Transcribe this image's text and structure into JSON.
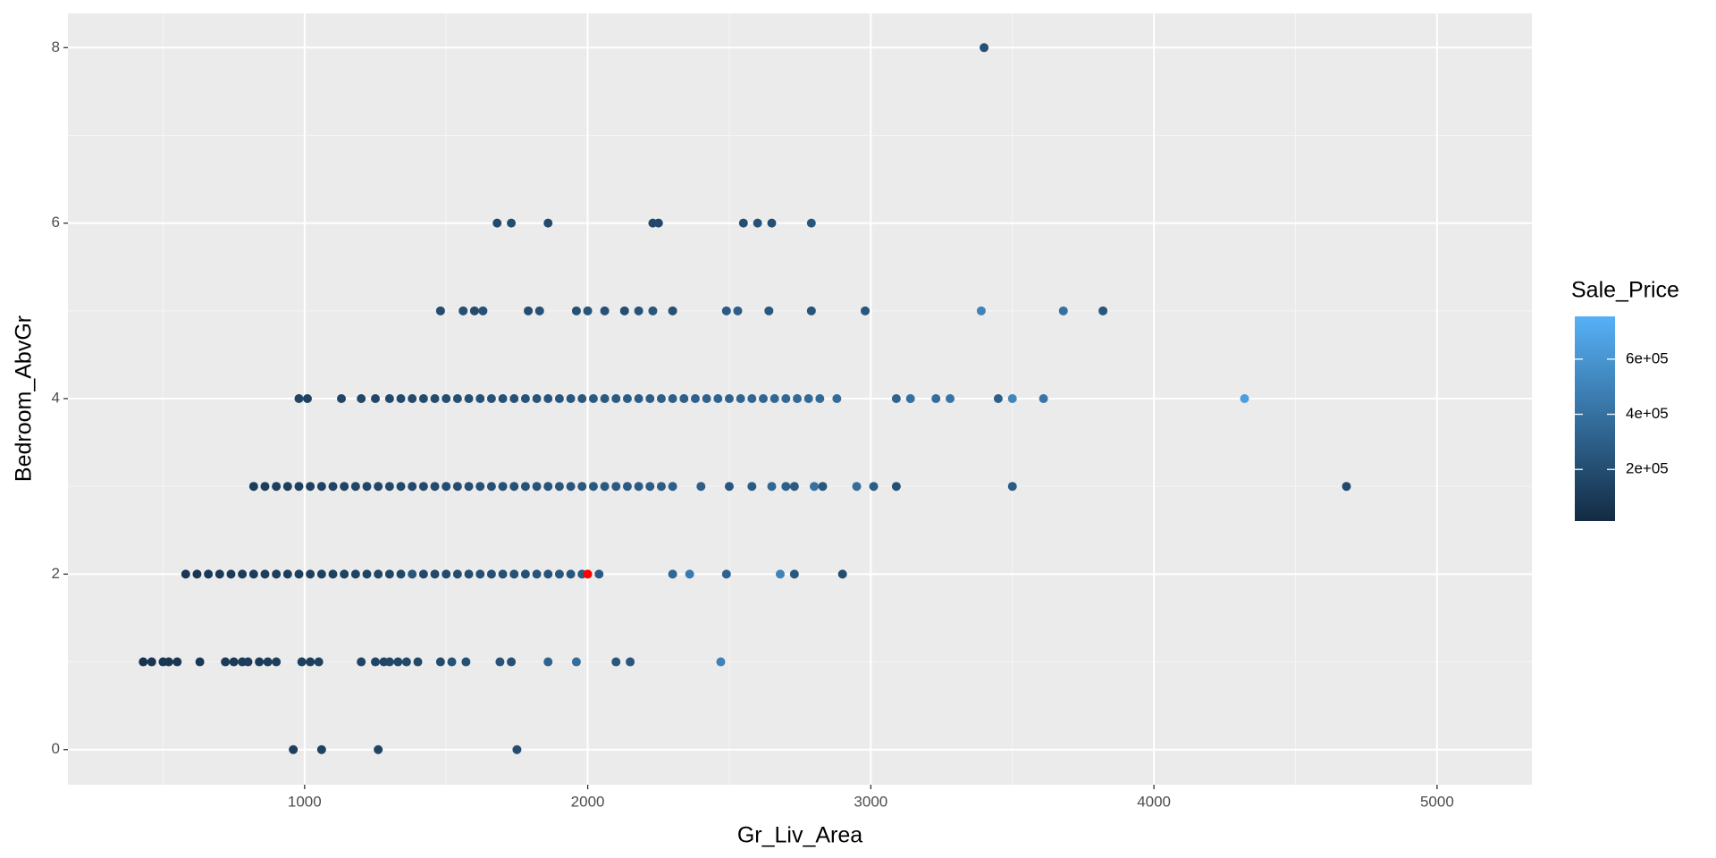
{
  "chart_data": {
    "type": "scatter",
    "x_label": "Gr_Liv_Area",
    "y_label": "Bedroom_AbvGr",
    "xlim": [
      164,
      5335
    ],
    "ylim": [
      -0.4,
      8.39
    ],
    "xticks": [
      1000,
      2000,
      3000,
      4000,
      5000
    ],
    "xminor": [
      500,
      1500,
      2500,
      3500,
      4500
    ],
    "yticks": [
      0,
      2,
      4,
      6,
      8
    ],
    "yminor": [
      1,
      3,
      5,
      7
    ],
    "grid": true,
    "colorbar": {
      "title": "Sale_Price",
      "lim": [
        12789,
        755000
      ],
      "low": "#132b43",
      "high": "#56b1f7",
      "ticks": [
        {
          "value": 200000,
          "label": "2e+05"
        },
        {
          "value": 400000,
          "label": "4e+05"
        },
        {
          "value": 600000,
          "label": "6e+05"
        }
      ]
    },
    "highlight": {
      "x": 2000,
      "y": 2,
      "color": "#ff0000"
    },
    "points": [
      {
        "x": 960,
        "y": 0,
        "p": 120000
      },
      {
        "x": 1060,
        "y": 0,
        "p": 140000
      },
      {
        "x": 1260,
        "y": 0,
        "p": 150000
      },
      {
        "x": 1750,
        "y": 0,
        "p": 200000
      },
      {
        "x": 430,
        "y": 1,
        "p": 60000
      },
      {
        "x": 460,
        "y": 1,
        "p": 70000
      },
      {
        "x": 500,
        "y": 1,
        "p": 75000
      },
      {
        "x": 520,
        "y": 1,
        "p": 80000
      },
      {
        "x": 550,
        "y": 1,
        "p": 85000
      },
      {
        "x": 630,
        "y": 1,
        "p": 90000
      },
      {
        "x": 720,
        "y": 1,
        "p": 100000
      },
      {
        "x": 750,
        "y": 1,
        "p": 95000
      },
      {
        "x": 780,
        "y": 1,
        "p": 105000
      },
      {
        "x": 800,
        "y": 1,
        "p": 110000
      },
      {
        "x": 840,
        "y": 1,
        "p": 100000
      },
      {
        "x": 870,
        "y": 1,
        "p": 115000
      },
      {
        "x": 900,
        "y": 1,
        "p": 120000
      },
      {
        "x": 990,
        "y": 1,
        "p": 130000
      },
      {
        "x": 1020,
        "y": 1,
        "p": 125000
      },
      {
        "x": 1050,
        "y": 1,
        "p": 140000
      },
      {
        "x": 1200,
        "y": 1,
        "p": 150000
      },
      {
        "x": 1250,
        "y": 1,
        "p": 160000
      },
      {
        "x": 1280,
        "y": 1,
        "p": 155000
      },
      {
        "x": 1300,
        "y": 1,
        "p": 170000
      },
      {
        "x": 1330,
        "y": 1,
        "p": 165000
      },
      {
        "x": 1360,
        "y": 1,
        "p": 180000
      },
      {
        "x": 1400,
        "y": 1,
        "p": 175000
      },
      {
        "x": 1480,
        "y": 1,
        "p": 190000
      },
      {
        "x": 1520,
        "y": 1,
        "p": 230000
      },
      {
        "x": 1570,
        "y": 1,
        "p": 210000
      },
      {
        "x": 1690,
        "y": 1,
        "p": 240000
      },
      {
        "x": 1730,
        "y": 1,
        "p": 220000
      },
      {
        "x": 1860,
        "y": 1,
        "p": 330000
      },
      {
        "x": 1960,
        "y": 1,
        "p": 380000
      },
      {
        "x": 2100,
        "y": 1,
        "p": 260000
      },
      {
        "x": 2150,
        "y": 1,
        "p": 250000
      },
      {
        "x": 2470,
        "y": 1,
        "p": 500000
      },
      {
        "x": 580,
        "y": 2,
        "p": 85000
      },
      {
        "x": 620,
        "y": 2,
        "p": 80000
      },
      {
        "x": 660,
        "y": 2,
        "p": 90000
      },
      {
        "x": 700,
        "y": 2,
        "p": 95000
      },
      {
        "x": 740,
        "y": 2,
        "p": 100000
      },
      {
        "x": 780,
        "y": 2,
        "p": 105000
      },
      {
        "x": 820,
        "y": 2,
        "p": 110000
      },
      {
        "x": 860,
        "y": 2,
        "p": 115000
      },
      {
        "x": 900,
        "y": 2,
        "p": 120000
      },
      {
        "x": 940,
        "y": 2,
        "p": 118000
      },
      {
        "x": 980,
        "y": 2,
        "p": 125000
      },
      {
        "x": 1020,
        "y": 2,
        "p": 130000
      },
      {
        "x": 1060,
        "y": 2,
        "p": 135000
      },
      {
        "x": 1100,
        "y": 2,
        "p": 140000
      },
      {
        "x": 1140,
        "y": 2,
        "p": 138000
      },
      {
        "x": 1180,
        "y": 2,
        "p": 145000
      },
      {
        "x": 1220,
        "y": 2,
        "p": 150000
      },
      {
        "x": 1260,
        "y": 2,
        "p": 155000
      },
      {
        "x": 1300,
        "y": 2,
        "p": 160000
      },
      {
        "x": 1340,
        "y": 2,
        "p": 170000
      },
      {
        "x": 1380,
        "y": 2,
        "p": 250000
      },
      {
        "x": 1420,
        "y": 2,
        "p": 180000
      },
      {
        "x": 1460,
        "y": 2,
        "p": 175000
      },
      {
        "x": 1500,
        "y": 2,
        "p": 190000
      },
      {
        "x": 1540,
        "y": 2,
        "p": 200000
      },
      {
        "x": 1580,
        "y": 2,
        "p": 195000
      },
      {
        "x": 1620,
        "y": 2,
        "p": 210000
      },
      {
        "x": 1660,
        "y": 2,
        "p": 205000
      },
      {
        "x": 1700,
        "y": 2,
        "p": 220000
      },
      {
        "x": 1740,
        "y": 2,
        "p": 230000
      },
      {
        "x": 1780,
        "y": 2,
        "p": 215000
      },
      {
        "x": 1820,
        "y": 2,
        "p": 240000
      },
      {
        "x": 1860,
        "y": 2,
        "p": 235000
      },
      {
        "x": 1900,
        "y": 2,
        "p": 260000
      },
      {
        "x": 1940,
        "y": 2,
        "p": 250000
      },
      {
        "x": 1980,
        "y": 2,
        "p": 270000
      },
      {
        "x": 2040,
        "y": 2,
        "p": 280000
      },
      {
        "x": 2300,
        "y": 2,
        "p": 350000
      },
      {
        "x": 2360,
        "y": 2,
        "p": 450000
      },
      {
        "x": 2490,
        "y": 2,
        "p": 320000
      },
      {
        "x": 2680,
        "y": 2,
        "p": 500000
      },
      {
        "x": 2730,
        "y": 2,
        "p": 260000
      },
      {
        "x": 2900,
        "y": 2,
        "p": 200000
      },
      {
        "x": 820,
        "y": 3,
        "p": 110000
      },
      {
        "x": 860,
        "y": 3,
        "p": 115000
      },
      {
        "x": 900,
        "y": 3,
        "p": 120000
      },
      {
        "x": 940,
        "y": 3,
        "p": 125000
      },
      {
        "x": 980,
        "y": 3,
        "p": 130000
      },
      {
        "x": 1020,
        "y": 3,
        "p": 135000
      },
      {
        "x": 1060,
        "y": 3,
        "p": 140000
      },
      {
        "x": 1100,
        "y": 3,
        "p": 145000
      },
      {
        "x": 1140,
        "y": 3,
        "p": 150000
      },
      {
        "x": 1180,
        "y": 3,
        "p": 155000
      },
      {
        "x": 1220,
        "y": 3,
        "p": 160000
      },
      {
        "x": 1260,
        "y": 3,
        "p": 165000
      },
      {
        "x": 1300,
        "y": 3,
        "p": 170000
      },
      {
        "x": 1340,
        "y": 3,
        "p": 175000
      },
      {
        "x": 1380,
        "y": 3,
        "p": 180000
      },
      {
        "x": 1420,
        "y": 3,
        "p": 185000
      },
      {
        "x": 1460,
        "y": 3,
        "p": 190000
      },
      {
        "x": 1500,
        "y": 3,
        "p": 195000
      },
      {
        "x": 1540,
        "y": 3,
        "p": 200000
      },
      {
        "x": 1580,
        "y": 3,
        "p": 205000
      },
      {
        "x": 1620,
        "y": 3,
        "p": 210000
      },
      {
        "x": 1660,
        "y": 3,
        "p": 215000
      },
      {
        "x": 1700,
        "y": 3,
        "p": 220000
      },
      {
        "x": 1740,
        "y": 3,
        "p": 225000
      },
      {
        "x": 1780,
        "y": 3,
        "p": 230000
      },
      {
        "x": 1820,
        "y": 3,
        "p": 235000
      },
      {
        "x": 1860,
        "y": 3,
        "p": 240000
      },
      {
        "x": 1900,
        "y": 3,
        "p": 245000
      },
      {
        "x": 1940,
        "y": 3,
        "p": 250000
      },
      {
        "x": 1980,
        "y": 3,
        "p": 255000
      },
      {
        "x": 2020,
        "y": 3,
        "p": 260000
      },
      {
        "x": 2060,
        "y": 3,
        "p": 265000
      },
      {
        "x": 2100,
        "y": 3,
        "p": 270000
      },
      {
        "x": 2140,
        "y": 3,
        "p": 275000
      },
      {
        "x": 2180,
        "y": 3,
        "p": 280000
      },
      {
        "x": 2220,
        "y": 3,
        "p": 285000
      },
      {
        "x": 2260,
        "y": 3,
        "p": 290000
      },
      {
        "x": 2300,
        "y": 3,
        "p": 300000
      },
      {
        "x": 2400,
        "y": 3,
        "p": 300000
      },
      {
        "x": 2500,
        "y": 3,
        "p": 250000
      },
      {
        "x": 2580,
        "y": 3,
        "p": 280000
      },
      {
        "x": 2650,
        "y": 3,
        "p": 350000
      },
      {
        "x": 2700,
        "y": 3,
        "p": 300000
      },
      {
        "x": 2730,
        "y": 3,
        "p": 270000
      },
      {
        "x": 2800,
        "y": 3,
        "p": 400000
      },
      {
        "x": 2830,
        "y": 3,
        "p": 250000
      },
      {
        "x": 2950,
        "y": 3,
        "p": 380000
      },
      {
        "x": 3010,
        "y": 3,
        "p": 290000
      },
      {
        "x": 3090,
        "y": 3,
        "p": 210000
      },
      {
        "x": 3500,
        "y": 3,
        "p": 280000
      },
      {
        "x": 4680,
        "y": 3,
        "p": 180000
      },
      {
        "x": 980,
        "y": 4,
        "p": 150000
      },
      {
        "x": 1010,
        "y": 4,
        "p": 140000
      },
      {
        "x": 1130,
        "y": 4,
        "p": 160000
      },
      {
        "x": 1200,
        "y": 4,
        "p": 170000
      },
      {
        "x": 1250,
        "y": 4,
        "p": 165000
      },
      {
        "x": 1300,
        "y": 4,
        "p": 175000
      },
      {
        "x": 1340,
        "y": 4,
        "p": 180000
      },
      {
        "x": 1380,
        "y": 4,
        "p": 185000
      },
      {
        "x": 1420,
        "y": 4,
        "p": 190000
      },
      {
        "x": 1460,
        "y": 4,
        "p": 195000
      },
      {
        "x": 1500,
        "y": 4,
        "p": 200000
      },
      {
        "x": 1540,
        "y": 4,
        "p": 205000
      },
      {
        "x": 1580,
        "y": 4,
        "p": 210000
      },
      {
        "x": 1620,
        "y": 4,
        "p": 215000
      },
      {
        "x": 1660,
        "y": 4,
        "p": 220000
      },
      {
        "x": 1700,
        "y": 4,
        "p": 225000
      },
      {
        "x": 1740,
        "y": 4,
        "p": 230000
      },
      {
        "x": 1780,
        "y": 4,
        "p": 235000
      },
      {
        "x": 1820,
        "y": 4,
        "p": 240000
      },
      {
        "x": 1860,
        "y": 4,
        "p": 245000
      },
      {
        "x": 1900,
        "y": 4,
        "p": 250000
      },
      {
        "x": 1940,
        "y": 4,
        "p": 255000
      },
      {
        "x": 1980,
        "y": 4,
        "p": 260000
      },
      {
        "x": 2020,
        "y": 4,
        "p": 265000
      },
      {
        "x": 2060,
        "y": 4,
        "p": 270000
      },
      {
        "x": 2100,
        "y": 4,
        "p": 275000
      },
      {
        "x": 2140,
        "y": 4,
        "p": 280000
      },
      {
        "x": 2180,
        "y": 4,
        "p": 285000
      },
      {
        "x": 2220,
        "y": 4,
        "p": 290000
      },
      {
        "x": 2260,
        "y": 4,
        "p": 295000
      },
      {
        "x": 2300,
        "y": 4,
        "p": 300000
      },
      {
        "x": 2340,
        "y": 4,
        "p": 305000
      },
      {
        "x": 2380,
        "y": 4,
        "p": 310000
      },
      {
        "x": 2420,
        "y": 4,
        "p": 315000
      },
      {
        "x": 2460,
        "y": 4,
        "p": 320000
      },
      {
        "x": 2500,
        "y": 4,
        "p": 325000
      },
      {
        "x": 2540,
        "y": 4,
        "p": 330000
      },
      {
        "x": 2580,
        "y": 4,
        "p": 335000
      },
      {
        "x": 2620,
        "y": 4,
        "p": 340000
      },
      {
        "x": 2660,
        "y": 4,
        "p": 345000
      },
      {
        "x": 2700,
        "y": 4,
        "p": 350000
      },
      {
        "x": 2740,
        "y": 4,
        "p": 355000
      },
      {
        "x": 2780,
        "y": 4,
        "p": 360000
      },
      {
        "x": 2820,
        "y": 4,
        "p": 365000
      },
      {
        "x": 2880,
        "y": 4,
        "p": 370000
      },
      {
        "x": 3090,
        "y": 4,
        "p": 330000
      },
      {
        "x": 3140,
        "y": 4,
        "p": 400000
      },
      {
        "x": 3230,
        "y": 4,
        "p": 380000
      },
      {
        "x": 3280,
        "y": 4,
        "p": 420000
      },
      {
        "x": 3450,
        "y": 4,
        "p": 300000
      },
      {
        "x": 3500,
        "y": 4,
        "p": 520000
      },
      {
        "x": 3610,
        "y": 4,
        "p": 420000
      },
      {
        "x": 4320,
        "y": 4,
        "p": 650000
      },
      {
        "x": 1480,
        "y": 5,
        "p": 200000
      },
      {
        "x": 1560,
        "y": 5,
        "p": 210000
      },
      {
        "x": 1600,
        "y": 5,
        "p": 190000
      },
      {
        "x": 1630,
        "y": 5,
        "p": 220000
      },
      {
        "x": 1790,
        "y": 5,
        "p": 200000
      },
      {
        "x": 1830,
        "y": 5,
        "p": 230000
      },
      {
        "x": 1960,
        "y": 5,
        "p": 210000
      },
      {
        "x": 2000,
        "y": 5,
        "p": 240000
      },
      {
        "x": 2060,
        "y": 5,
        "p": 220000
      },
      {
        "x": 2130,
        "y": 5,
        "p": 200000
      },
      {
        "x": 2180,
        "y": 5,
        "p": 230000
      },
      {
        "x": 2230,
        "y": 5,
        "p": 250000
      },
      {
        "x": 2300,
        "y": 5,
        "p": 220000
      },
      {
        "x": 2490,
        "y": 5,
        "p": 280000
      },
      {
        "x": 2530,
        "y": 5,
        "p": 300000
      },
      {
        "x": 2640,
        "y": 5,
        "p": 260000
      },
      {
        "x": 2790,
        "y": 5,
        "p": 240000
      },
      {
        "x": 2980,
        "y": 5,
        "p": 250000
      },
      {
        "x": 3390,
        "y": 5,
        "p": 500000
      },
      {
        "x": 3680,
        "y": 5,
        "p": 400000
      },
      {
        "x": 3820,
        "y": 5,
        "p": 250000
      },
      {
        "x": 1680,
        "y": 6,
        "p": 180000
      },
      {
        "x": 1730,
        "y": 6,
        "p": 200000
      },
      {
        "x": 1860,
        "y": 6,
        "p": 190000
      },
      {
        "x": 2230,
        "y": 6,
        "p": 170000
      },
      {
        "x": 2250,
        "y": 6,
        "p": 180000
      },
      {
        "x": 2550,
        "y": 6,
        "p": 200000
      },
      {
        "x": 2600,
        "y": 6,
        "p": 220000
      },
      {
        "x": 2650,
        "y": 6,
        "p": 210000
      },
      {
        "x": 2790,
        "y": 6,
        "p": 250000
      },
      {
        "x": 3400,
        "y": 8,
        "p": 220000
      }
    ]
  }
}
